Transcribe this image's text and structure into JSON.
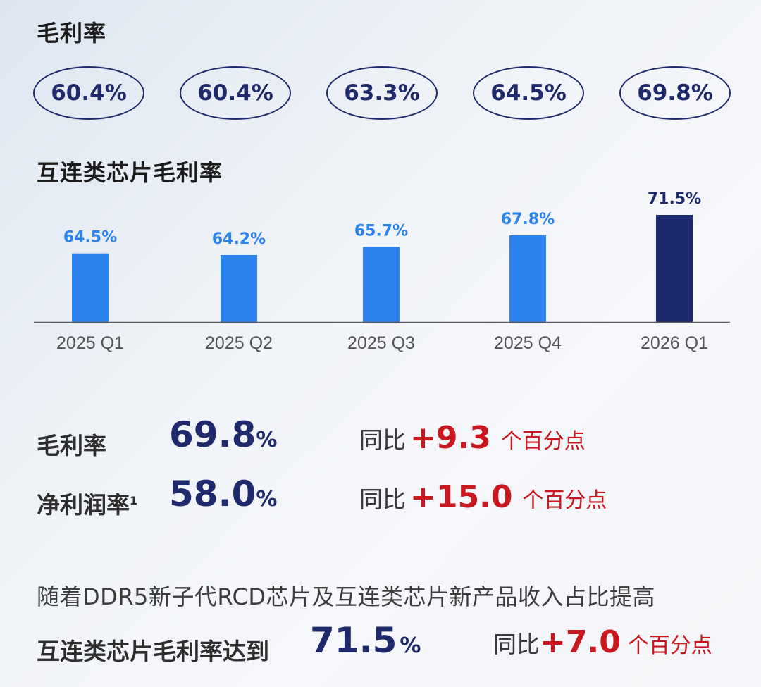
{
  "gross_margin_title": "毛利率",
  "gross_margin_pills": [
    "60.4%",
    "60.4%",
    "63.3%",
    "64.5%",
    "69.8%"
  ],
  "interconnect_title": "互连类芯片毛利率",
  "chart_data": {
    "type": "bar",
    "title": "互连类芯片毛利率",
    "categories": [
      "2025 Q1",
      "2025 Q2",
      "2025 Q3",
      "2025 Q4",
      "2026 Q1"
    ],
    "values": [
      64.5,
      64.2,
      65.7,
      67.8,
      71.5
    ],
    "value_labels": [
      "64.5%",
      "64.2%",
      "65.7%",
      "67.8%",
      "71.5%"
    ],
    "colors": [
      "#2b83f0",
      "#2b83f0",
      "#2b83f0",
      "#2b83f0",
      "#1b2a6e"
    ],
    "label_colors": [
      "#2b83f0",
      "#2b83f0",
      "#2b83f0",
      "#2b83f0",
      "#1b2a6e"
    ],
    "grid": false
  },
  "metrics": {
    "gross": {
      "label": "毛利率",
      "value": "69.8",
      "unit": "%",
      "yoy_label": "同比",
      "change": "+9.3",
      "change_unit": "个百分点"
    },
    "net": {
      "label": "净利润率",
      "footnote": "1",
      "value": "58.0",
      "unit": "%",
      "yoy_label": "同比",
      "change": "+15.0",
      "change_unit": "个百分点"
    }
  },
  "summary": {
    "sentence": "随着DDR5新子代RCD芯片及互连类芯片新产品收入占比提高",
    "label": "互连类芯片毛利率达到",
    "value": "71.5",
    "unit": "%",
    "yoy_label": "同比",
    "change": "+7.0",
    "change_unit": "个百分点"
  }
}
